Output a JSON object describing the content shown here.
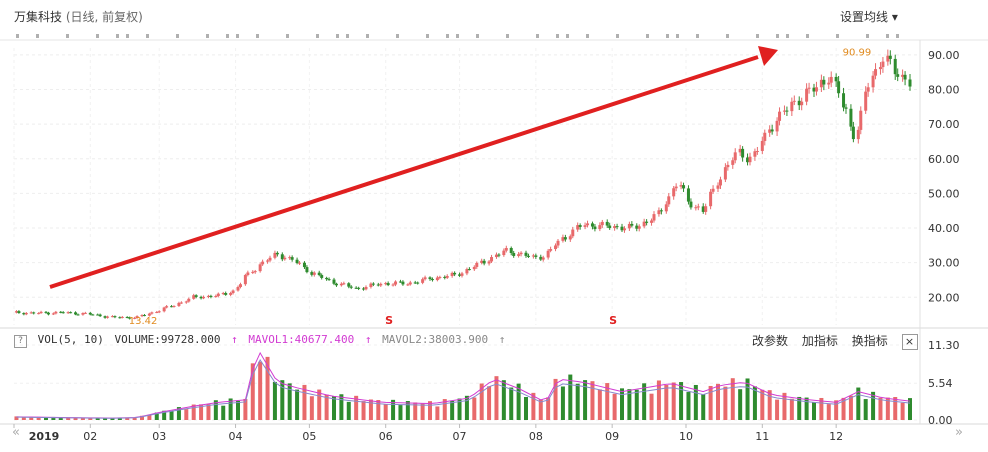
{
  "header": {
    "title": "万集科技",
    "subtitle": "(日线, 前复权)",
    "settings_label": "设置均线",
    "settings_arrow": "▾"
  },
  "volume_panel": {
    "help": "?",
    "vol_label": "VOL(5, 10)",
    "volume_value": "VOLUME:99728.000",
    "mavol1_value": "MAVOL1:40677.400",
    "mavol2_value": "MAVOL2:38003.900",
    "tools": [
      "改参数",
      "加指标",
      "换指标"
    ],
    "close": "×"
  },
  "nav": {
    "prev": "«",
    "next": "»"
  },
  "colors": {
    "up": "#e8696b",
    "down": "#2e8b2e",
    "arrow": "#e02020",
    "mavol1": "#d23bd2",
    "mavol2": "#8888cc"
  },
  "chart_data": [
    {
      "type": "candlestick",
      "title": "万集科技",
      "y_ticks": [
        "20.00",
        "30.00",
        "40.00",
        "50.00",
        "60.00",
        "70.00",
        "80.00",
        "90.00"
      ],
      "ylim": [
        12,
        92
      ],
      "x_ticks": [
        "2019",
        "02",
        "03",
        "04",
        "05",
        "06",
        "07",
        "08",
        "09",
        "10",
        "11",
        "12"
      ],
      "annotations": [
        {
          "text": "13.42",
          "date": "2019-02-15",
          "value": 13.42
        },
        {
          "text": "90.99",
          "date": "2019-12-02",
          "value": 90.99
        }
      ],
      "markers": [
        "S",
        "S"
      ],
      "close_series": [
        [
          "2019-01-02",
          15.6
        ],
        [
          "2019-01-10",
          15.4
        ],
        [
          "2019-01-20",
          15.6
        ],
        [
          "2019-01-31",
          15.2
        ],
        [
          "2019-02-10",
          14.2
        ],
        [
          "2019-02-20",
          14.2
        ],
        [
          "2019-02-28",
          16.0
        ],
        [
          "2019-03-08",
          18.0
        ],
        [
          "2019-03-15",
          20.0
        ],
        [
          "2019-03-25",
          20.5
        ],
        [
          "2019-04-01",
          22.0
        ],
        [
          "2019-04-05",
          26.0
        ],
        [
          "2019-04-12",
          30.0
        ],
        [
          "2019-04-18",
          32.5
        ],
        [
          "2019-04-25",
          30.5
        ],
        [
          "2019-05-02",
          27.0
        ],
        [
          "2019-05-10",
          24.5
        ],
        [
          "2019-05-20",
          22.5
        ],
        [
          "2019-05-31",
          24.0
        ],
        [
          "2019-06-10",
          24.0
        ],
        [
          "2019-06-20",
          25.5
        ],
        [
          "2019-06-30",
          26.5
        ],
        [
          "2019-07-10",
          30.0
        ],
        [
          "2019-07-20",
          33.5
        ],
        [
          "2019-07-25",
          32.5
        ],
        [
          "2019-07-31",
          31.5
        ],
        [
          "2019-08-05",
          32.0
        ],
        [
          "2019-08-10",
          36.0
        ],
        [
          "2019-08-20",
          41.0
        ],
        [
          "2019-08-31",
          40.5
        ],
        [
          "2019-09-10",
          40.0
        ],
        [
          "2019-09-20",
          44.0
        ],
        [
          "2019-09-28",
          54.0
        ],
        [
          "2019-10-01",
          48.0
        ],
        [
          "2019-10-08",
          45.0
        ],
        [
          "2019-10-15",
          55.0
        ],
        [
          "2019-10-22",
          62.0
        ],
        [
          "2019-10-28",
          60.0
        ],
        [
          "2019-11-05",
          70.0
        ],
        [
          "2019-11-15",
          77.0
        ],
        [
          "2019-11-22",
          80.0
        ],
        [
          "2019-11-28",
          84.0
        ],
        [
          "2019-12-02",
          79.0
        ],
        [
          "2019-12-05",
          74.0
        ],
        [
          "2019-12-09",
          65.0
        ],
        [
          "2019-12-14",
          82.0
        ],
        [
          "2019-12-20",
          89.0
        ],
        [
          "2019-12-26",
          85.0
        ],
        [
          "2019-12-31",
          82.0
        ]
      ]
    },
    {
      "type": "bar",
      "title": "VOL(5, 10)",
      "y_ticks": [
        "11.30",
        "5.54",
        "0.00"
      ],
      "ylim": [
        0,
        11.3
      ],
      "volume_series": [
        [
          "2019-01-02",
          0.5
        ],
        [
          "2019-01-20",
          0.4
        ],
        [
          "2019-02-10",
          0.3
        ],
        [
          "2019-02-20",
          0.4
        ],
        [
          "2019-03-01",
          1.2
        ],
        [
          "2019-03-15",
          2.2
        ],
        [
          "2019-03-25",
          2.8
        ],
        [
          "2019-04-05",
          3.2
        ],
        [
          "2019-04-10",
          11.3
        ],
        [
          "2019-04-18",
          6.0
        ],
        [
          "2019-04-25",
          5.2
        ],
        [
          "2019-05-10",
          3.8
        ],
        [
          "2019-05-31",
          2.8
        ],
        [
          "2019-06-20",
          2.6
        ],
        [
          "2019-07-05",
          3.5
        ],
        [
          "2019-07-15",
          6.5
        ],
        [
          "2019-07-25",
          5.0
        ],
        [
          "2019-08-05",
          2.8
        ],
        [
          "2019-08-10",
          6.5
        ],
        [
          "2019-08-20",
          6.0
        ],
        [
          "2019-09-05",
          4.5
        ],
        [
          "2019-09-25",
          5.8
        ],
        [
          "2019-10-08",
          4.5
        ],
        [
          "2019-10-15",
          5.5
        ],
        [
          "2019-10-25",
          6.0
        ],
        [
          "2019-11-05",
          4.0
        ],
        [
          "2019-11-20",
          3.2
        ],
        [
          "2019-12-01",
          2.8
        ],
        [
          "2019-12-10",
          4.5
        ],
        [
          "2019-12-20",
          3.5
        ],
        [
          "2019-12-31",
          3.0
        ]
      ]
    }
  ]
}
